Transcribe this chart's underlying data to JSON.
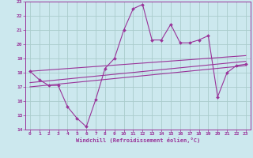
{
  "xlabel": "Windchill (Refroidissement éolien,°C)",
  "bg_color": "#cce8ee",
  "grid_color": "#aacccc",
  "line_color": "#993399",
  "xlim": [
    -0.5,
    23.5
  ],
  "ylim": [
    14,
    23
  ],
  "xticks": [
    0,
    1,
    2,
    3,
    4,
    5,
    6,
    7,
    8,
    9,
    10,
    11,
    12,
    13,
    14,
    15,
    16,
    17,
    18,
    19,
    20,
    21,
    22,
    23
  ],
  "yticks": [
    14,
    15,
    16,
    17,
    18,
    19,
    20,
    21,
    22,
    23
  ],
  "main_x": [
    0,
    1,
    2,
    3,
    4,
    5,
    6,
    7,
    8,
    9,
    10,
    11,
    12,
    13,
    14,
    15,
    16,
    17,
    18,
    19,
    20,
    21,
    22,
    23
  ],
  "main_y": [
    18.1,
    17.5,
    17.1,
    17.1,
    15.6,
    14.8,
    14.2,
    16.1,
    18.3,
    19.0,
    21.0,
    22.5,
    22.8,
    20.3,
    20.3,
    21.4,
    20.1,
    20.1,
    20.3,
    20.6,
    16.3,
    18.0,
    18.5,
    18.6
  ],
  "trend_lines": [
    {
      "x": [
        0,
        23
      ],
      "y": [
        17.0,
        18.5
      ]
    },
    {
      "x": [
        0,
        23
      ],
      "y": [
        17.3,
        18.8
      ]
    },
    {
      "x": [
        0,
        23
      ],
      "y": [
        18.1,
        19.2
      ]
    }
  ]
}
